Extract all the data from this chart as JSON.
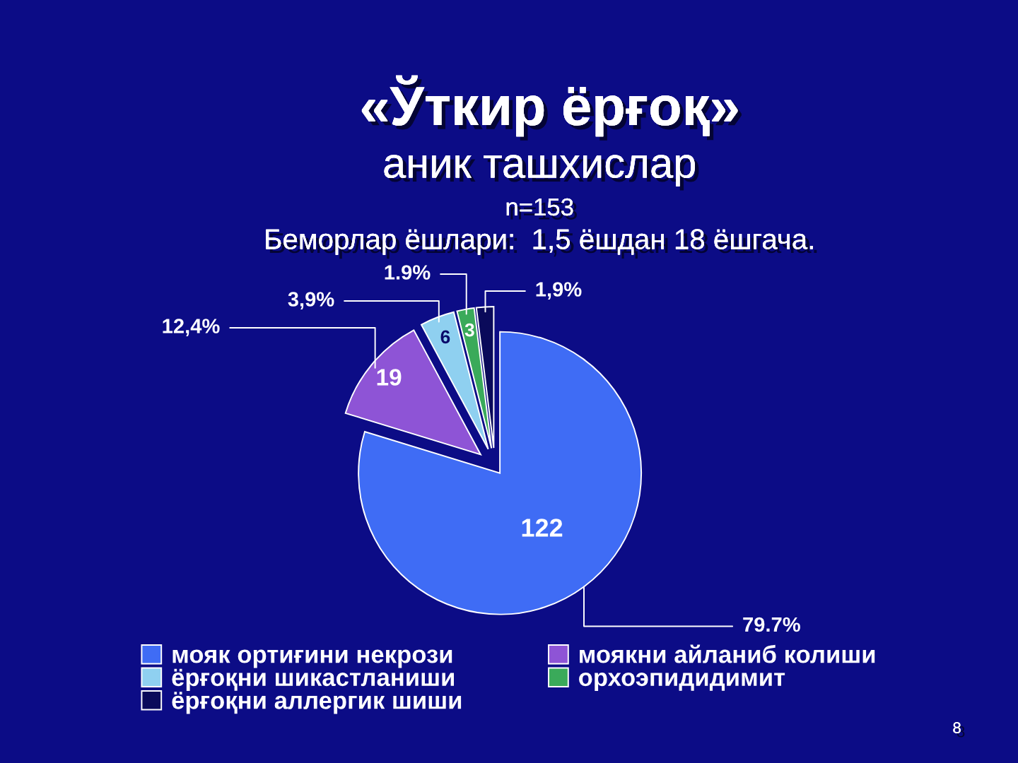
{
  "chart_data": {
    "type": "pie",
    "title": "«Ўткир ёрғоқ»",
    "subtitle": "аник ташхислар",
    "categories": [
      "мояк ортиғини некрози",
      "моякни айланиб колиши",
      "ёрғоқни шикастланиши",
      "орхоэпидидимит",
      "ёрғоқни аллергик шиши"
    ],
    "values": [
      122,
      19,
      6,
      3,
      3
    ],
    "value_labels": [
      "122",
      "19",
      "6",
      "3",
      null
    ],
    "colors": [
      "#3f6cf5",
      "#8e54d6",
      "#8fd0f0",
      "#3aaa5a",
      "#0a0a5a"
    ],
    "legend": "bottom",
    "annotations": [
      "n=153",
      "Беморлар ёшлари:  1,5 ёшдан 18 ёшгача.",
      "8",
      {
        "text": "79.7%",
        "x": "мояк ортиғини некрози"
      },
      {
        "text": "12,4%",
        "x": "моякни айланиб колиши"
      },
      {
        "text": "3,9%",
        "x": "ёрғоқни шикастланиши"
      },
      {
        "text": "1.9%",
        "x": "орхоэпидидимит"
      },
      {
        "text": "1,9%",
        "x": "ёрғоқни аллергик шиши"
      }
    ]
  }
}
